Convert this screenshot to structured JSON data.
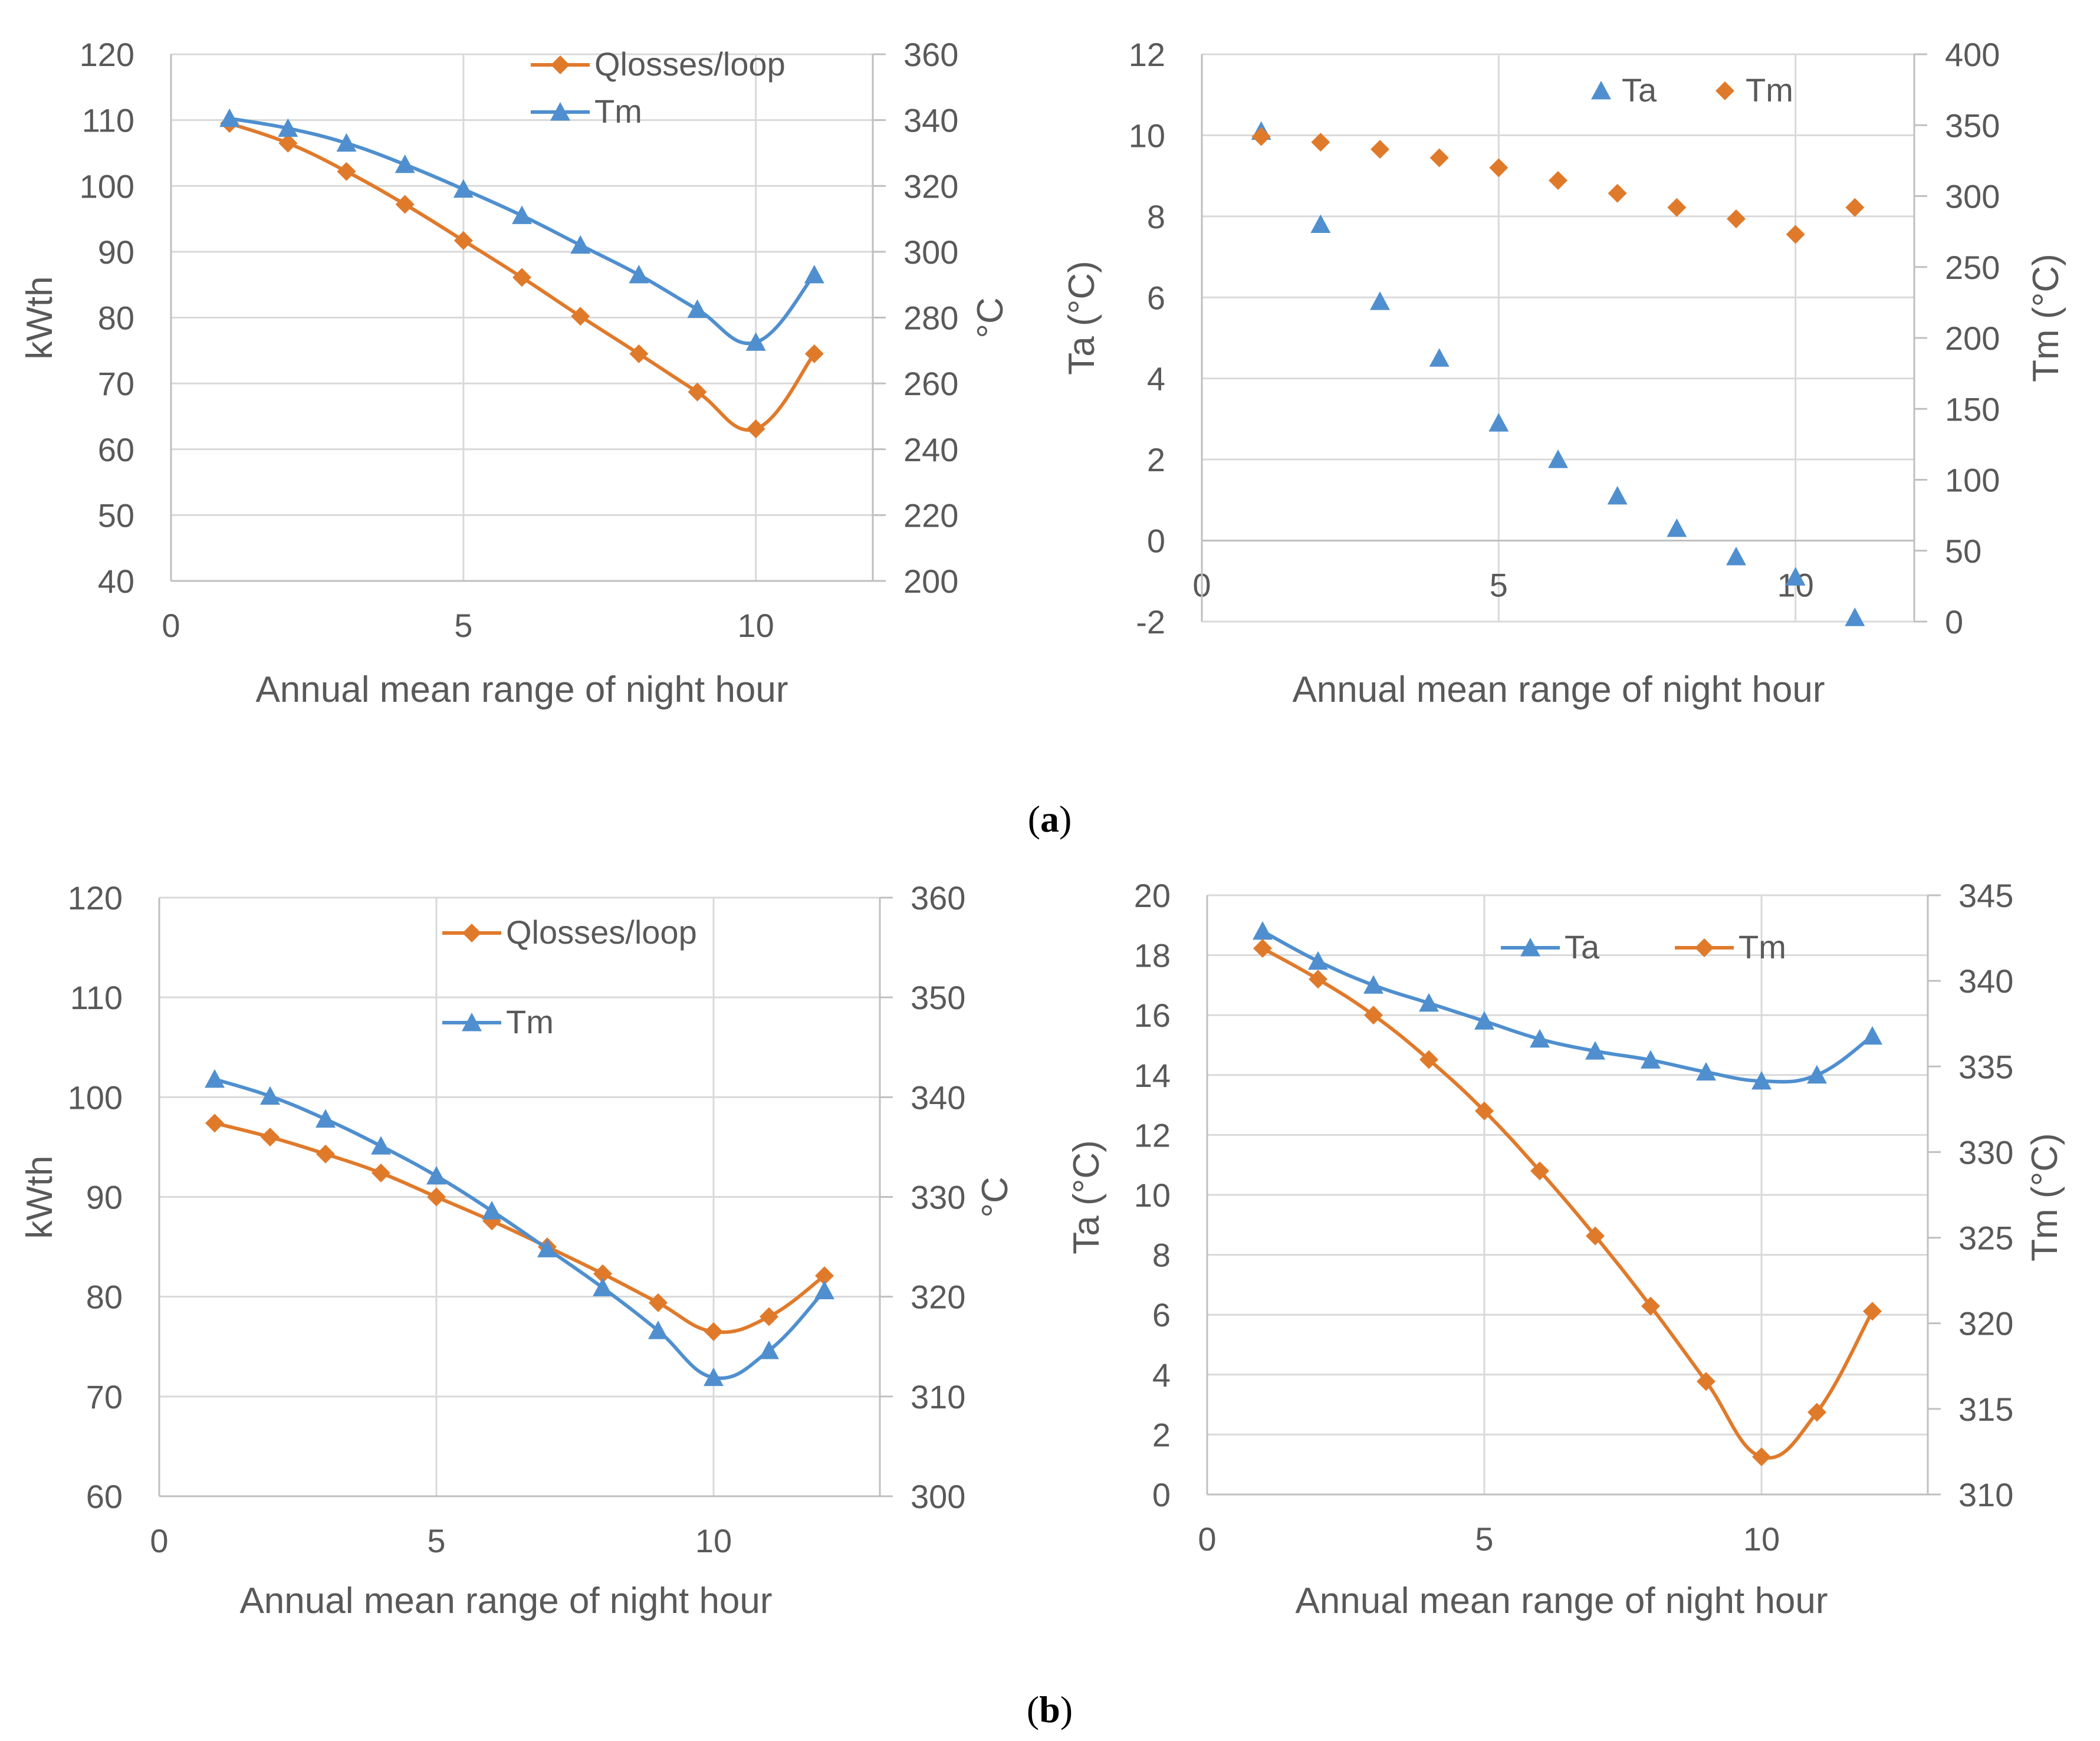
{
  "colors": {
    "orange": "#E07A2B",
    "blue": "#4F8FCF",
    "grid": "#D9D9D9",
    "axis": "#BFBFBF",
    "text": "#595959"
  },
  "captions": {
    "a": "a",
    "b": "b"
  },
  "chart_data": [
    {
      "id": "a-left",
      "type": "line",
      "xlabel": "Annual mean range of night hour",
      "ylabel": "kWth",
      "y2label": "°C",
      "xlim": [
        0,
        12
      ],
      "ylim": [
        40,
        120
      ],
      "y2lim": [
        200,
        360
      ],
      "xticks": [
        0,
        5,
        10
      ],
      "yticks": [
        40,
        50,
        60,
        70,
        80,
        90,
        100,
        110,
        120
      ],
      "y2ticks": [
        200,
        220,
        240,
        260,
        280,
        300,
        320,
        340,
        360
      ],
      "legend": [
        "Qlosses/loop",
        "Tm"
      ],
      "series": [
        {
          "name": "Qlosses/loop",
          "axis": "left",
          "marker": "diamond",
          "line": true,
          "color": "#E07A2B",
          "x": [
            1,
            2,
            3,
            4,
            5,
            6,
            7,
            8,
            9,
            10,
            11
          ],
          "values": [
            109.5,
            106.5,
            102.2,
            97.2,
            91.7,
            86.1,
            80.2,
            74.5,
            68.7,
            63.1,
            74.5
          ]
        },
        {
          "name": "Tm",
          "axis": "right",
          "marker": "triangle",
          "line": true,
          "color": "#4F8FCF",
          "x": [
            1,
            2,
            3,
            4,
            5,
            6,
            7,
            8,
            9,
            10,
            11
          ],
          "values": [
            340.5,
            337.5,
            333,
            326.5,
            319,
            311,
            302,
            293,
            282.5,
            272.5,
            293
          ]
        }
      ]
    },
    {
      "id": "a-right",
      "type": "scatter",
      "xlabel": "Annual mean range of night hour",
      "ylabel": "Ta (°C)",
      "y2label": "Tm (°C)",
      "xlim": [
        0,
        12
      ],
      "ylim": [
        -2,
        12
      ],
      "y2lim": [
        0,
        400
      ],
      "xticks": [
        0,
        5,
        10
      ],
      "yticks": [
        -2,
        0,
        2,
        4,
        6,
        8,
        10,
        12
      ],
      "y2ticks": [
        0,
        50,
        100,
        150,
        200,
        250,
        300,
        350,
        400
      ],
      "legend": [
        "Ta",
        "Tm"
      ],
      "series": [
        {
          "name": "Ta",
          "axis": "left",
          "marker": "triangle",
          "line": false,
          "color": "#4F8FCF",
          "x": [
            1,
            2,
            3,
            4,
            5,
            6,
            7,
            8,
            9,
            10,
            11
          ],
          "values": [
            10.1,
            7.8,
            5.9,
            4.5,
            2.9,
            2.0,
            1.1,
            0.3,
            -0.4,
            -0.9,
            -1.9
          ]
        },
        {
          "name": "Tm",
          "axis": "right",
          "marker": "diamond",
          "line": false,
          "color": "#E07A2B",
          "x": [
            1,
            2,
            3,
            4,
            5,
            6,
            7,
            8,
            9,
            10,
            11
          ],
          "values": [
            342,
            338,
            333,
            327,
            320,
            311,
            302,
            292,
            284,
            273,
            292
          ]
        }
      ]
    },
    {
      "id": "b-left",
      "type": "line",
      "xlabel": "Annual mean range of night hour",
      "ylabel": "kWth",
      "y2label": "°C",
      "xlim": [
        0,
        13
      ],
      "ylim": [
        60,
        120
      ],
      "y2lim": [
        300,
        360
      ],
      "xticks": [
        0,
        5,
        10
      ],
      "yticks": [
        60,
        70,
        80,
        90,
        100,
        110,
        120
      ],
      "y2ticks": [
        300,
        310,
        320,
        330,
        340,
        350,
        360
      ],
      "legend": [
        "Qlosses/loop",
        "Tm"
      ],
      "series": [
        {
          "name": "Qlosses/loop",
          "axis": "left",
          "marker": "diamond",
          "line": true,
          "color": "#E07A2B",
          "x": [
            1,
            2,
            3,
            4,
            5,
            6,
            7,
            8,
            9,
            10,
            11,
            12
          ],
          "values": [
            97.4,
            96.0,
            94.3,
            92.4,
            90.0,
            87.6,
            85.0,
            82.3,
            79.4,
            76.5,
            78.0,
            82.1
          ]
        },
        {
          "name": "Tm",
          "axis": "right",
          "marker": "triangle",
          "line": true,
          "color": "#4F8FCF",
          "x": [
            1,
            2,
            3,
            4,
            5,
            6,
            7,
            8,
            9,
            10,
            11,
            12
          ],
          "values": [
            341.8,
            340.1,
            337.8,
            335.1,
            332.1,
            328.6,
            324.8,
            320.9,
            316.6,
            311.9,
            314.6,
            320.6
          ]
        }
      ]
    },
    {
      "id": "b-right",
      "type": "line",
      "xlabel": "Annual mean range of night hour",
      "ylabel": "Ta (°C)",
      "y2label": "Tm (°C)",
      "xlim": [
        0,
        13
      ],
      "ylim": [
        0,
        20
      ],
      "y2lim": [
        310,
        345
      ],
      "xticks": [
        0,
        5,
        10
      ],
      "yticks": [
        0,
        2,
        4,
        6,
        8,
        10,
        12,
        14,
        16,
        18,
        20
      ],
      "y2ticks": [
        310,
        315,
        320,
        325,
        330,
        335,
        340,
        345
      ],
      "legend": [
        "Ta",
        "Tm"
      ],
      "series": [
        {
          "name": "Ta",
          "axis": "left",
          "marker": "triangle",
          "line": true,
          "color": "#4F8FCF",
          "x": [
            1,
            2,
            3,
            4,
            5,
            6,
            7,
            8,
            9,
            10,
            11,
            12
          ],
          "values": [
            18.8,
            17.8,
            17.0,
            16.4,
            15.8,
            15.2,
            14.8,
            14.5,
            14.1,
            13.8,
            14.0,
            15.3
          ]
        },
        {
          "name": "Tm",
          "axis": "right",
          "marker": "diamond",
          "line": true,
          "color": "#E07A2B",
          "x": [
            1,
            2,
            3,
            4,
            5,
            6,
            7,
            8,
            9,
            10,
            11,
            12
          ],
          "values": [
            341.9,
            340.1,
            338.0,
            335.4,
            332.4,
            328.9,
            325.1,
            321.0,
            316.6,
            312.2,
            314.8,
            320.7
          ]
        }
      ]
    }
  ]
}
